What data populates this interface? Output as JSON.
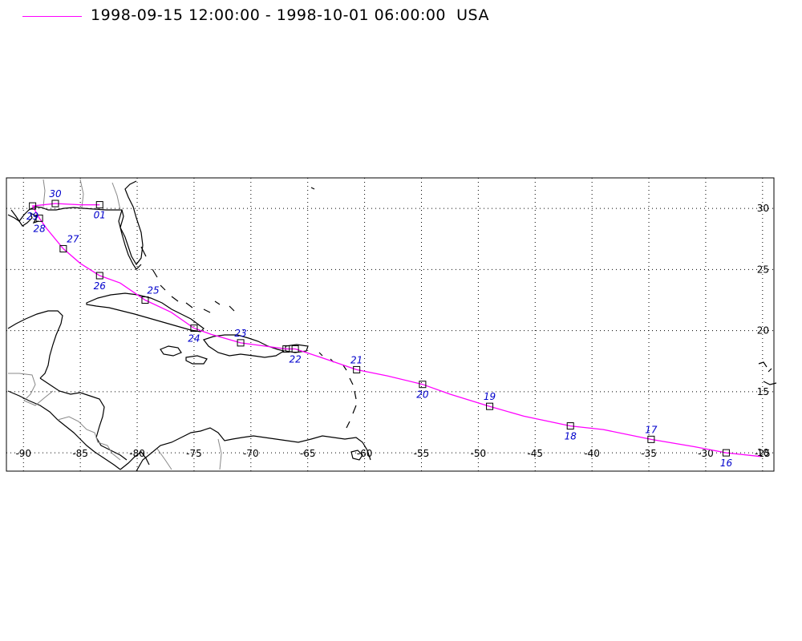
{
  "legend": {
    "time_range": "1998-09-15 12:00:00 - 1998-10-01 06:00:00",
    "region": "USA",
    "track_color": "#ff00ff",
    "label_color": "#0000cc"
  },
  "map": {
    "lon_range": [
      -91.5,
      -24
    ],
    "lat_range": [
      8.5,
      32.5
    ],
    "lon_ticks": [
      -90,
      -85,
      -80,
      -75,
      -70,
      -65,
      -60,
      -55,
      -50,
      -45,
      -40,
      -35,
      -30,
      -25
    ],
    "lat_ticks": [
      10,
      15,
      20,
      25,
      30
    ],
    "grid": "dotted"
  },
  "track": [
    {
      "lon": -25.2,
      "lat": 9.7
    },
    {
      "lon": -28.2,
      "lat": 10.0,
      "day": "16",
      "marker": true
    },
    {
      "lon": -31.0,
      "lat": 10.5
    },
    {
      "lon": -34.8,
      "lat": 11.1,
      "day": "17",
      "marker": true
    },
    {
      "lon": -39.0,
      "lat": 11.9
    },
    {
      "lon": -41.9,
      "lat": 12.2,
      "day": "18",
      "marker": true
    },
    {
      "lon": -46.0,
      "lat": 13.0
    },
    {
      "lon": -49.0,
      "lat": 13.8,
      "day": "19",
      "marker": true
    },
    {
      "lon": -52.5,
      "lat": 14.8
    },
    {
      "lon": -54.9,
      "lat": 15.6,
      "day": "20",
      "marker": true
    },
    {
      "lon": -58.0,
      "lat": 16.3
    },
    {
      "lon": -60.7,
      "lat": 16.8,
      "day": "21",
      "marker": true
    },
    {
      "lon": -63.8,
      "lat": 17.8
    },
    {
      "lon": -66.1,
      "lat": 18.5,
      "day": "22",
      "marker": true
    },
    {
      "lon": -66.9,
      "lat": 18.5,
      "marker": true
    },
    {
      "lon": -70.9,
      "lat": 19.0,
      "day": "23",
      "marker": true
    },
    {
      "lon": -73.5,
      "lat": 19.7
    },
    {
      "lon": -75.0,
      "lat": 20.2,
      "day": "24",
      "marker": true
    },
    {
      "lon": -77.0,
      "lat": 21.5
    },
    {
      "lon": -79.3,
      "lat": 22.5,
      "day": "25",
      "marker": true
    },
    {
      "lon": -81.5,
      "lat": 23.9
    },
    {
      "lon": -83.3,
      "lat": 24.5,
      "day": "26",
      "marker": true
    },
    {
      "lon": -85.0,
      "lat": 25.5
    },
    {
      "lon": -86.5,
      "lat": 26.7,
      "day": "27",
      "marker": true
    },
    {
      "lon": -88.0,
      "lat": 28.4
    },
    {
      "lon": -88.6,
      "lat": 29.2,
      "day": "28",
      "marker": true
    },
    {
      "lon": -89.2,
      "lat": 30.2,
      "day": "29",
      "marker": true
    },
    {
      "lon": -87.2,
      "lat": 30.4,
      "day": "30",
      "marker": true
    },
    {
      "lon": -85.0,
      "lat": 30.3
    },
    {
      "lon": -83.3,
      "lat": 30.3,
      "day": "01",
      "marker": true
    }
  ]
}
